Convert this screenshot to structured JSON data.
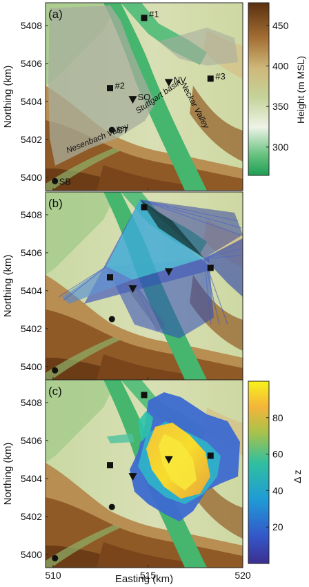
{
  "figure": {
    "xlabel": "Easting (km)",
    "ylabel": "Northing (km)",
    "x_ticks": [
      "510",
      "515",
      "520"
    ],
    "y_ticks": [
      "5400",
      "5402",
      "5404",
      "5406",
      "5408"
    ]
  },
  "chart_data": [
    {
      "type": "heatmap",
      "panel_label": "(a)",
      "xlim": [
        509.6,
        520
      ],
      "ylim": [
        5399.3,
        5409.2
      ],
      "colorbar": {
        "label": "Height (m MSL)",
        "ticks": [
          300,
          350,
          400,
          450
        ],
        "range": [
          265,
          478
        ]
      },
      "markers": [
        {
          "label": "#1",
          "shape": "square",
          "x": 514.8,
          "y": 5408.4
        },
        {
          "label": "#2",
          "shape": "square",
          "x": 513.0,
          "y": 5404.7
        },
        {
          "label": "#3",
          "shape": "square",
          "x": 518.3,
          "y": 5405.2
        },
        {
          "label": "NV",
          "shape": "triangle-down",
          "x": 516.1,
          "y": 5405.0
        },
        {
          "label": "SO",
          "shape": "triangle-down",
          "x": 514.2,
          "y": 5404.1
        },
        {
          "label": "ST",
          "shape": "circle",
          "x": 513.1,
          "y": 5402.5
        },
        {
          "label": "SB",
          "shape": "circle",
          "x": 510.1,
          "y": 5399.8
        }
      ],
      "annotations": [
        "Stuttgart basin",
        "Nesenbach Valley",
        "Neckar Valley"
      ]
    },
    {
      "type": "heatmap",
      "panel_label": "(b)",
      "xlim": [
        509.6,
        520
      ],
      "ylim": [
        5399.3,
        5409.2
      ],
      "markers": [
        {
          "shape": "square",
          "x": 514.8,
          "y": 5408.4
        },
        {
          "shape": "square",
          "x": 513.0,
          "y": 5404.7
        },
        {
          "shape": "square",
          "x": 518.3,
          "y": 5405.2
        },
        {
          "shape": "triangle-down",
          "x": 516.1,
          "y": 5405.0
        },
        {
          "shape": "triangle-down",
          "x": 514.2,
          "y": 5404.1
        },
        {
          "shape": "circle",
          "x": 513.1,
          "y": 5402.5
        },
        {
          "shape": "circle",
          "x": 510.1,
          "y": 5399.8
        }
      ]
    },
    {
      "type": "heatmap",
      "panel_label": "(c)",
      "xlim": [
        509.6,
        520
      ],
      "ylim": [
        5399.3,
        5409.2
      ],
      "colorbar": {
        "label": "Δ z",
        "ticks": [
          20,
          40,
          60,
          80
        ],
        "range": [
          0,
          100
        ]
      },
      "markers": [
        {
          "shape": "square",
          "x": 514.8,
          "y": 5408.4
        },
        {
          "shape": "square",
          "x": 513.0,
          "y": 5404.7
        },
        {
          "shape": "square",
          "x": 518.3,
          "y": 5405.2
        },
        {
          "shape": "triangle-down",
          "x": 516.1,
          "y": 5405.0
        },
        {
          "shape": "triangle-down",
          "x": 514.2,
          "y": 5404.1
        },
        {
          "shape": "circle",
          "x": 513.1,
          "y": 5402.5
        },
        {
          "shape": "circle",
          "x": 510.1,
          "y": 5399.8
        }
      ]
    }
  ]
}
